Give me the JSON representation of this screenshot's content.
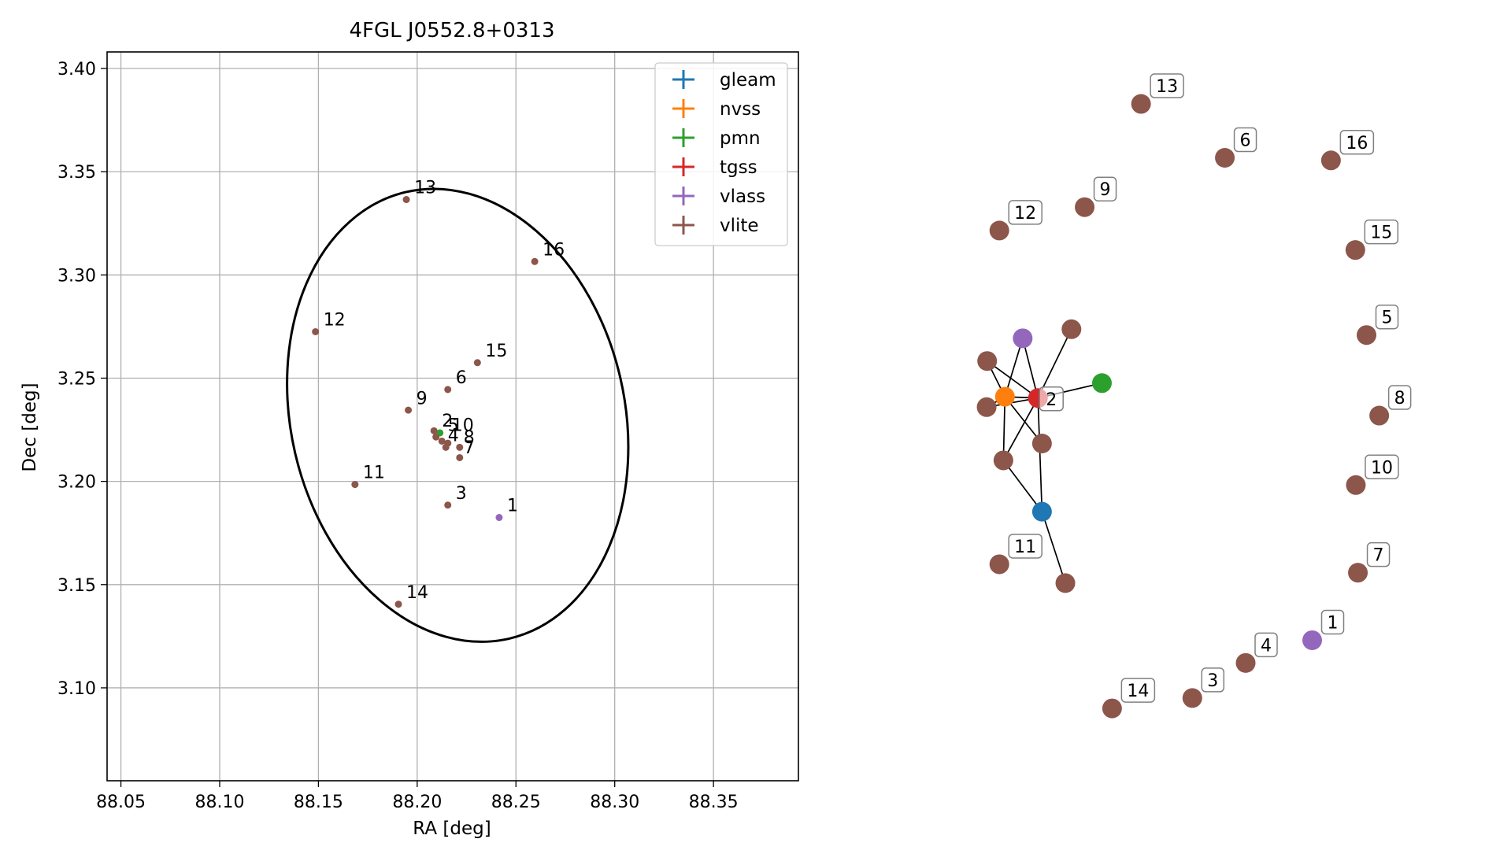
{
  "chart_data": [
    {
      "type": "scatter",
      "title": "4FGL J0552.8+0313",
      "xlabel": "RA [deg]",
      "ylabel": "Dec [deg]",
      "xlim": [
        88.043,
        88.393
      ],
      "ylim": [
        3.055,
        3.408
      ],
      "xticks": [
        "88.05",
        "88.10",
        "88.15",
        "88.20",
        "88.25",
        "88.30",
        "88.35"
      ],
      "xtick_values": [
        88.05,
        88.1,
        88.15,
        88.2,
        88.25,
        88.3,
        88.35
      ],
      "yticks": [
        "3.10",
        "3.15",
        "3.20",
        "3.25",
        "3.30",
        "3.35",
        "3.40"
      ],
      "ytick_values": [
        3.1,
        3.15,
        3.2,
        3.25,
        3.3,
        3.35,
        3.4
      ],
      "grid": true,
      "legend_position": "top-right",
      "legend": [
        {
          "name": "gleam",
          "color": "#1f77b4"
        },
        {
          "name": "nvss",
          "color": "#ff7f0e"
        },
        {
          "name": "pmn",
          "color": "#2ca02c"
        },
        {
          "name": "tgss",
          "color": "#d62728"
        },
        {
          "name": "vlass",
          "color": "#9467bd"
        },
        {
          "name": "vlite",
          "color": "#8c564b"
        }
      ],
      "ellipse": {
        "center_ra": 88.2205,
        "center_dec": 3.232,
        "semi_x": 0.0845,
        "semi_y": 0.111,
        "tilt_deg": -13
      },
      "points": [
        {
          "ra": 88.2415,
          "dec": 3.1825,
          "color": "#9467bd"
        },
        {
          "ra": 88.2115,
          "dec": 3.2235,
          "color": "#2ca02c"
        },
        {
          "ra": 88.2085,
          "dec": 3.2245,
          "color": "#8c564b"
        },
        {
          "ra": 88.2095,
          "dec": 3.2215,
          "color": "#8c564b"
        },
        {
          "ra": 88.2125,
          "dec": 3.2195,
          "color": "#8c564b"
        },
        {
          "ra": 88.2155,
          "dec": 3.2185,
          "color": "#8c564b"
        },
        {
          "ra": 88.2155,
          "dec": 3.1885,
          "color": "#8c564b"
        },
        {
          "ra": 88.2155,
          "dec": 3.2445,
          "color": "#8c564b"
        },
        {
          "ra": 88.2215,
          "dec": 3.2115,
          "color": "#8c564b"
        },
        {
          "ra": 88.2215,
          "dec": 3.2165,
          "color": "#8c564b"
        },
        {
          "ra": 88.1955,
          "dec": 3.2345,
          "color": "#8c564b"
        },
        {
          "ra": 88.2145,
          "dec": 3.2165,
          "color": "#8c564b"
        },
        {
          "ra": 88.1685,
          "dec": 3.1985,
          "color": "#8c564b"
        },
        {
          "ra": 88.1485,
          "dec": 3.2725,
          "color": "#8c564b"
        },
        {
          "ra": 88.1945,
          "dec": 3.3365,
          "color": "#8c564b"
        },
        {
          "ra": 88.1905,
          "dec": 3.1405,
          "color": "#8c564b"
        },
        {
          "ra": 88.2305,
          "dec": 3.2575,
          "color": "#8c564b"
        },
        {
          "ra": 88.2595,
          "dec": 3.3065,
          "color": "#8c564b"
        }
      ],
      "labels": [
        {
          "text": "1",
          "ra": 88.2455,
          "dec": 3.1855
        },
        {
          "text": "2",
          "ra": 88.2125,
          "dec": 3.2265
        },
        {
          "text": "5",
          "ra": 88.2155,
          "dec": 3.2245
        },
        {
          "text": "10",
          "ra": 88.2175,
          "dec": 3.2245
        },
        {
          "text": "4",
          "ra": 88.2155,
          "dec": 3.2195
        },
        {
          "text": "8",
          "ra": 88.2235,
          "dec": 3.2185
        },
        {
          "text": "7",
          "ra": 88.2235,
          "dec": 3.2135
        },
        {
          "text": "3",
          "ra": 88.2195,
          "dec": 3.1915
        },
        {
          "text": "6",
          "ra": 88.2195,
          "dec": 3.2475
        },
        {
          "text": "9",
          "ra": 88.1995,
          "dec": 3.2375
        },
        {
          "text": "11",
          "ra": 88.1725,
          "dec": 3.2015
        },
        {
          "text": "12",
          "ra": 88.1525,
          "dec": 3.2755
        },
        {
          "text": "13",
          "ra": 88.1985,
          "dec": 3.3395
        },
        {
          "text": "14",
          "ra": 88.1945,
          "dec": 3.1435
        },
        {
          "text": "15",
          "ra": 88.2345,
          "dec": 3.2605
        },
        {
          "text": "16",
          "ra": 88.2635,
          "dec": 3.3095
        }
      ]
    },
    {
      "type": "diagram",
      "description_none": "",
      "nodes": [
        {
          "id": "gleam",
          "x": 0.168,
          "y": 0.685,
          "color": "#1f77b4",
          "label": ""
        },
        {
          "id": "nvss",
          "x": 0.095,
          "y": 0.508,
          "color": "#ff7f0e",
          "label": ""
        },
        {
          "id": "pmn",
          "x": 0.286,
          "y": 0.487,
          "color": "#2ca02c",
          "label": ""
        },
        {
          "id": "tgss",
          "x": 0.16,
          "y": 0.51,
          "color": "#d62728",
          "label": ""
        },
        {
          "id": "vlass_a",
          "x": 0.13,
          "y": 0.418,
          "color": "#9467bd",
          "label": ""
        },
        {
          "id": "v_a",
          "x": 0.06,
          "y": 0.453,
          "color": "#8c564b",
          "label": ""
        },
        {
          "id": "v_b",
          "x": 0.059,
          "y": 0.524,
          "color": "#8c564b",
          "label": ""
        },
        {
          "id": "v_c",
          "x": 0.092,
          "y": 0.606,
          "color": "#8c564b",
          "label": ""
        },
        {
          "id": "v_d",
          "x": 0.168,
          "y": 0.58,
          "color": "#8c564b",
          "label": ""
        },
        {
          "id": "v_e",
          "x": 0.226,
          "y": 0.404,
          "color": "#8c564b",
          "label": ""
        },
        {
          "id": "v_f",
          "x": 0.214,
          "y": 0.795,
          "color": "#8c564b",
          "label": ""
        },
        {
          "id": "n1",
          "x": 0.7,
          "y": 0.883,
          "color": "#9467bd",
          "label": "1"
        },
        {
          "id": "n3",
          "x": 0.464,
          "y": 0.972,
          "color": "#8c564b",
          "label": "3"
        },
        {
          "id": "n4",
          "x": 0.569,
          "y": 0.918,
          "color": "#8c564b",
          "label": "4"
        },
        {
          "id": "n5",
          "x": 0.807,
          "y": 0.413,
          "color": "#8c564b",
          "label": "5"
        },
        {
          "id": "n6",
          "x": 0.528,
          "y": 0.14,
          "color": "#8c564b",
          "label": "6"
        },
        {
          "id": "n7",
          "x": 0.79,
          "y": 0.779,
          "color": "#8c564b",
          "label": "7"
        },
        {
          "id": "n8",
          "x": 0.832,
          "y": 0.537,
          "color": "#8c564b",
          "label": "8"
        },
        {
          "id": "n9",
          "x": 0.252,
          "y": 0.216,
          "color": "#8c564b",
          "label": "9"
        },
        {
          "id": "n10",
          "x": 0.786,
          "y": 0.644,
          "color": "#8c564b",
          "label": "10"
        },
        {
          "id": "n11",
          "x": 0.084,
          "y": 0.766,
          "color": "#8c564b",
          "label": "11"
        },
        {
          "id": "n12",
          "x": 0.084,
          "y": 0.252,
          "color": "#8c564b",
          "label": "12"
        },
        {
          "id": "n13",
          "x": 0.363,
          "y": 0.057,
          "color": "#8c564b",
          "label": "13"
        },
        {
          "id": "n14",
          "x": 0.306,
          "y": 0.988,
          "color": "#8c564b",
          "label": "14"
        },
        {
          "id": "n15",
          "x": 0.785,
          "y": 0.282,
          "color": "#8c564b",
          "label": "15"
        },
        {
          "id": "n16",
          "x": 0.737,
          "y": 0.144,
          "color": "#8c564b",
          "label": "16"
        }
      ],
      "edges": [
        [
          "vlass_a",
          "nvss"
        ],
        [
          "vlass_a",
          "tgss"
        ],
        [
          "v_a",
          "nvss"
        ],
        [
          "v_a",
          "tgss"
        ],
        [
          "v_b",
          "nvss"
        ],
        [
          "v_b",
          "tgss"
        ],
        [
          "nvss",
          "tgss"
        ],
        [
          "nvss",
          "v_c"
        ],
        [
          "nvss",
          "v_d"
        ],
        [
          "tgss",
          "pmn"
        ],
        [
          "tgss",
          "v_e"
        ],
        [
          "tgss",
          "v_c"
        ],
        [
          "tgss",
          "gleam"
        ],
        [
          "v_c",
          "gleam"
        ],
        [
          "gleam",
          "v_f"
        ]
      ],
      "tgss_label": "2"
    }
  ]
}
